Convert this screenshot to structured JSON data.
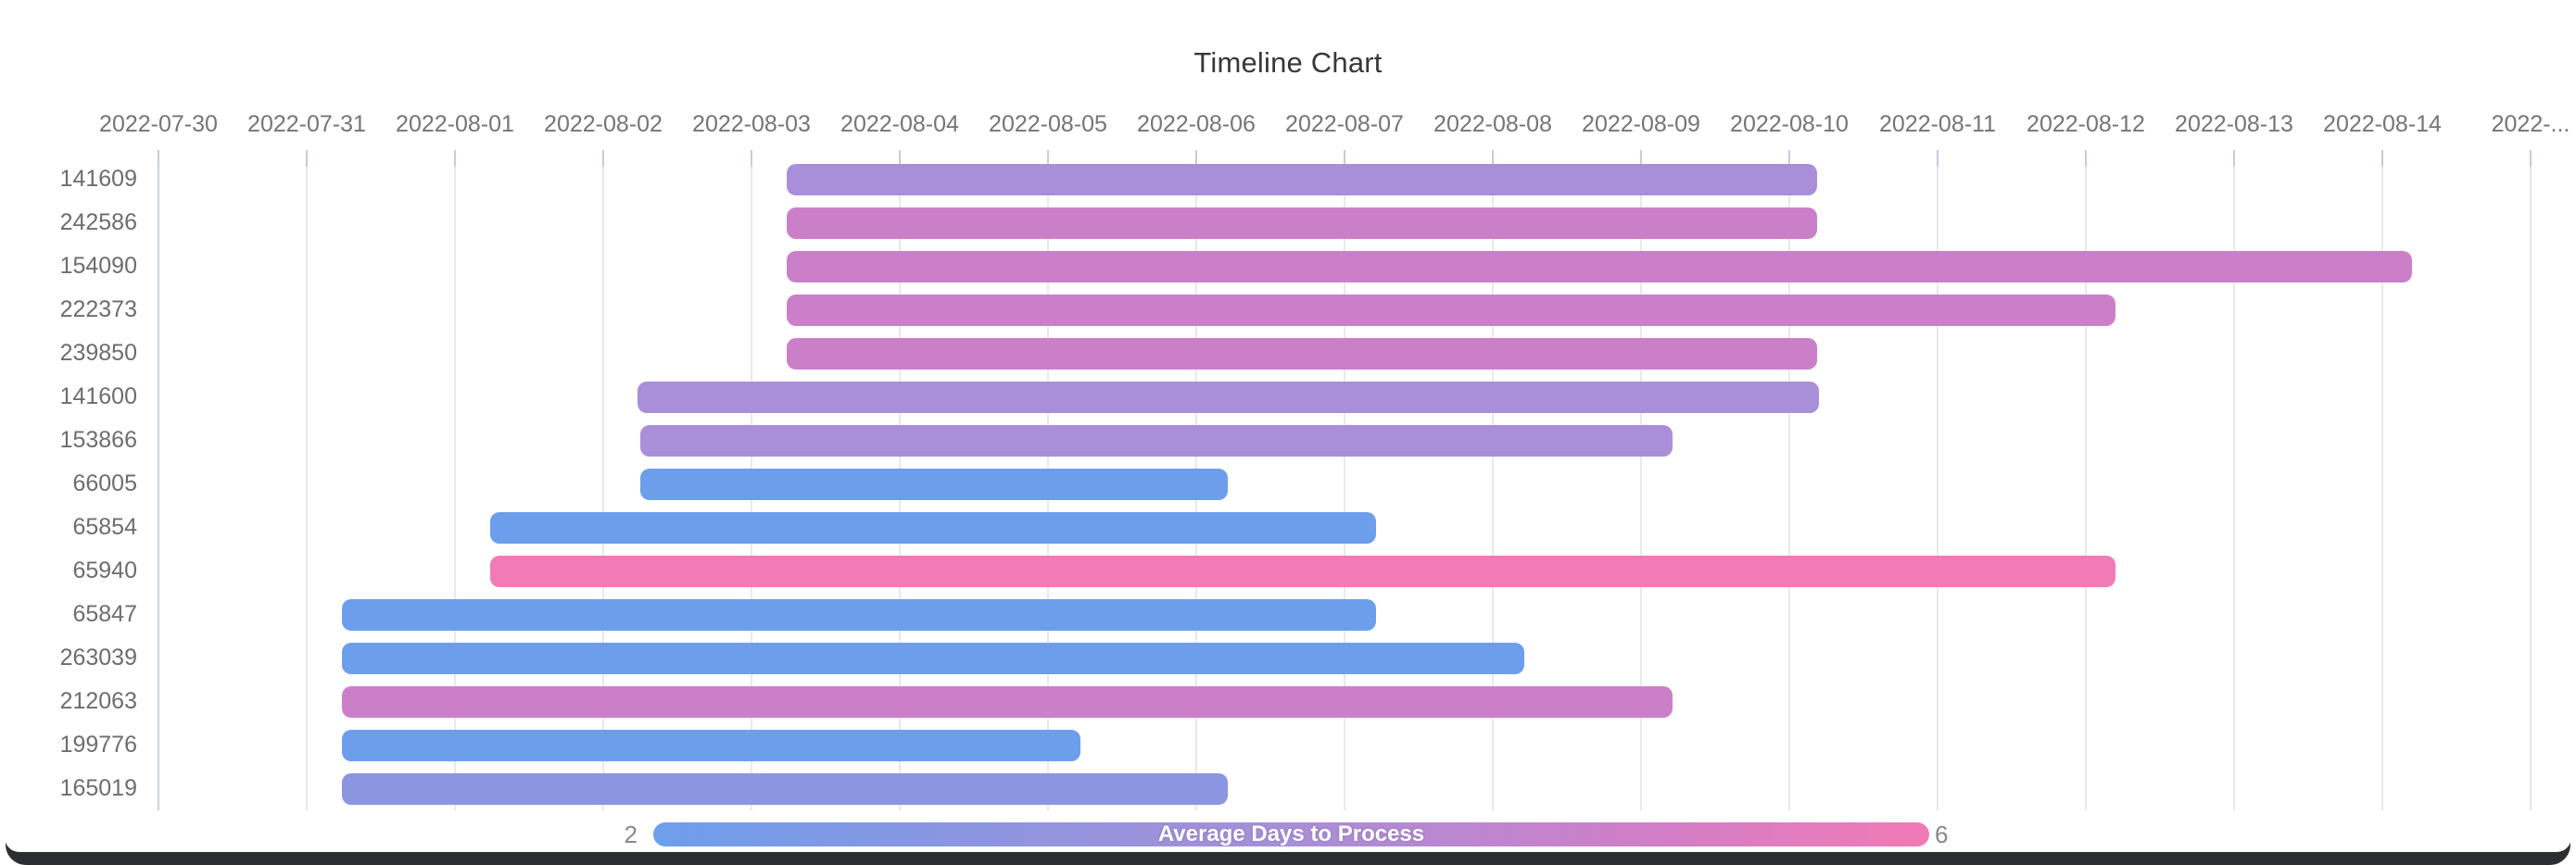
{
  "title": "Timeline Chart",
  "legend": {
    "min": "2",
    "max": "6",
    "label": "Average Days to Process"
  },
  "chart_data": {
    "type": "timeline",
    "title": "Timeline Chart",
    "x_ticks": [
      "2022-07-30",
      "2022-07-31",
      "2022-08-01",
      "2022-08-02",
      "2022-08-03",
      "2022-08-04",
      "2022-08-05",
      "2022-08-06",
      "2022-08-07",
      "2022-08-08",
      "2022-08-09",
      "2022-08-10",
      "2022-08-11",
      "2022-08-12",
      "2022-08-13",
      "2022-08-14",
      "2022-..."
    ],
    "x_axis_start_date": "2022-07-30",
    "grid": true,
    "rows": [
      {
        "id": "141609",
        "start_date": "2022-08-03",
        "end_date": "2022-08-10",
        "start_day": 4.24,
        "end_day": 11.19,
        "color": "#a98fd9"
      },
      {
        "id": "242586",
        "start_date": "2022-08-03",
        "end_date": "2022-08-10",
        "start_day": 4.24,
        "end_day": 11.19,
        "color": "#cc7fc9"
      },
      {
        "id": "154090",
        "start_date": "2022-08-03",
        "end_date": "2022-08-14",
        "start_day": 4.24,
        "end_day": 15.2,
        "color": "#cc7fc9"
      },
      {
        "id": "222373",
        "start_date": "2022-08-03",
        "end_date": "2022-08-12",
        "start_day": 4.24,
        "end_day": 13.2,
        "color": "#cc7fc9"
      },
      {
        "id": "239850",
        "start_date": "2022-08-03",
        "end_date": "2022-08-10",
        "start_day": 4.24,
        "end_day": 11.19,
        "color": "#cc7fc9"
      },
      {
        "id": "141600",
        "start_date": "2022-08-02",
        "end_date": "2022-08-10",
        "start_day": 3.23,
        "end_day": 11.2,
        "color": "#a98fd9"
      },
      {
        "id": "153866",
        "start_date": "2022-08-02",
        "end_date": "2022-08-09",
        "start_day": 3.25,
        "end_day": 10.21,
        "color": "#a98fd9"
      },
      {
        "id": "66005",
        "start_date": "2022-08-02",
        "end_date": "2022-08-06",
        "start_day": 3.25,
        "end_day": 7.21,
        "color": "#6d9eec"
      },
      {
        "id": "65854",
        "start_date": "2022-08-01",
        "end_date": "2022-08-07",
        "start_day": 2.24,
        "end_day": 8.21,
        "color": "#6d9eec"
      },
      {
        "id": "65940",
        "start_date": "2022-08-01",
        "end_date": "2022-08-12",
        "start_day": 2.24,
        "end_day": 13.2,
        "color": "#f27ab6"
      },
      {
        "id": "65847",
        "start_date": "2022-07-31",
        "end_date": "2022-08-07",
        "start_day": 1.24,
        "end_day": 8.21,
        "color": "#6d9eec"
      },
      {
        "id": "263039",
        "start_date": "2022-07-31",
        "end_date": "2022-08-08",
        "start_day": 1.24,
        "end_day": 9.21,
        "color": "#6d9eec"
      },
      {
        "id": "212063",
        "start_date": "2022-07-31",
        "end_date": "2022-08-09",
        "start_day": 1.24,
        "end_day": 10.21,
        "color": "#cc7fc9"
      },
      {
        "id": "199776",
        "start_date": "2022-07-31",
        "end_date": "2022-08-05",
        "start_day": 1.24,
        "end_day": 6.22,
        "color": "#6d9eec"
      },
      {
        "id": "165019",
        "start_date": "2022-07-31",
        "end_date": "2022-08-06",
        "start_day": 1.24,
        "end_day": 7.21,
        "color": "#8c95e0"
      }
    ],
    "color_scale": {
      "label": "Average Days to Process",
      "min": 2,
      "max": 6,
      "gradient_colors": [
        "#6d9eec",
        "#8c95e0",
        "#a98fd9",
        "#cc7fc9",
        "#f27ab6"
      ]
    },
    "legend_position": "bottom"
  }
}
